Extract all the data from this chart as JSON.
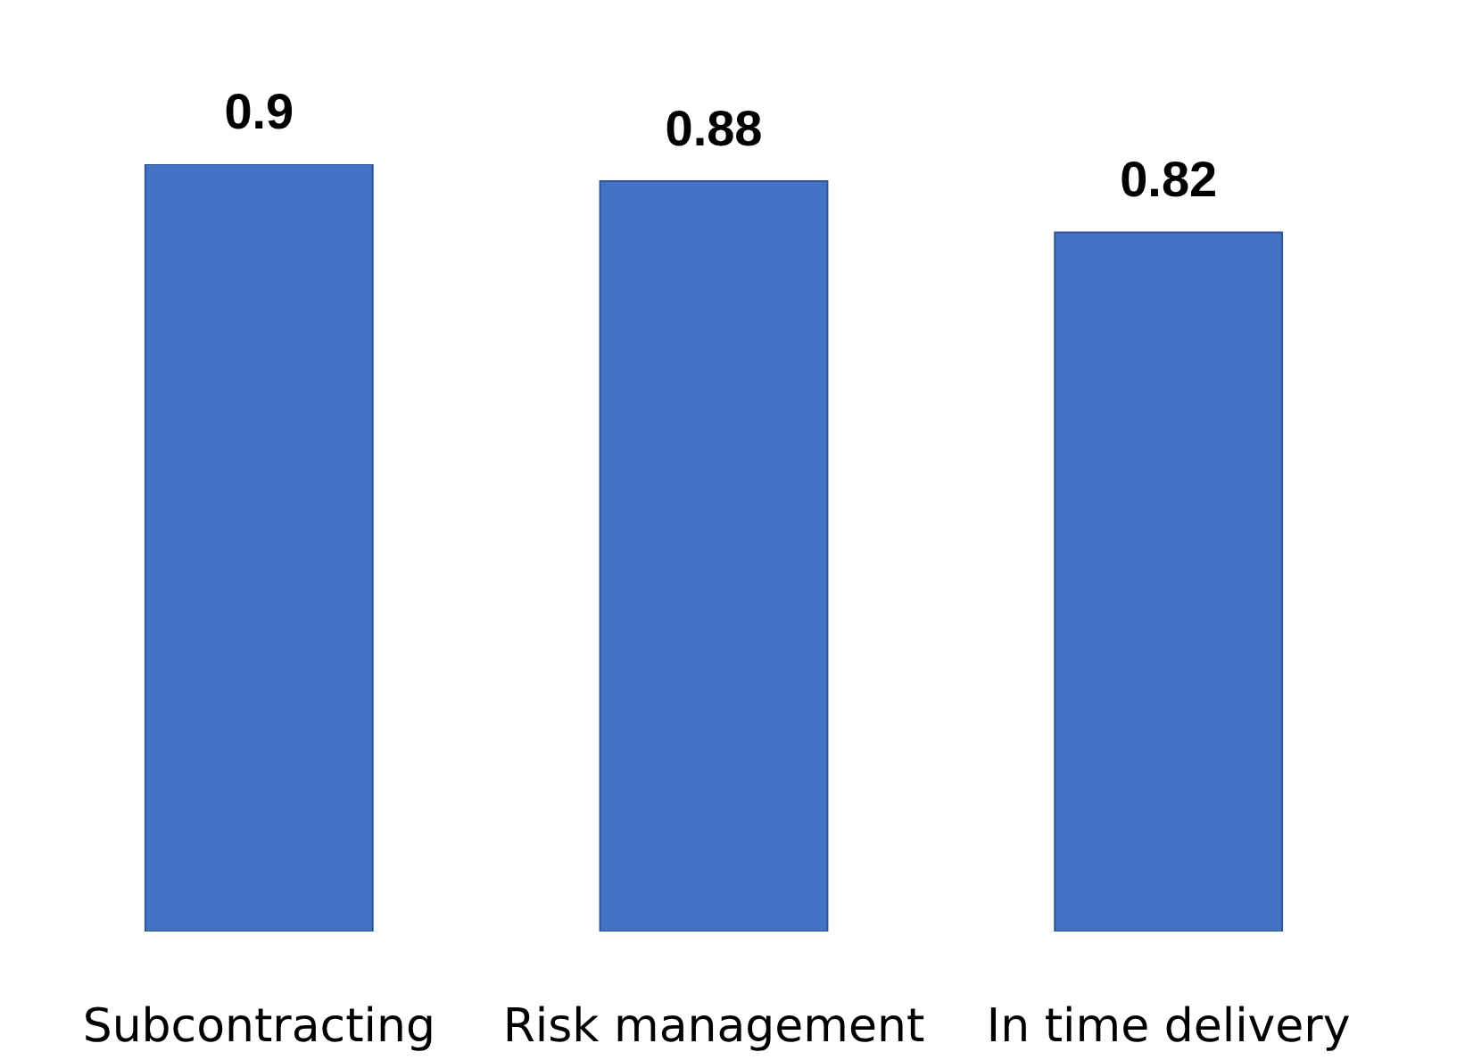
{
  "chart_data": {
    "type": "bar",
    "categories": [
      "Subcontracting",
      "Risk management",
      "In time delivery"
    ],
    "values": [
      0.9,
      0.88,
      0.82
    ],
    "color": "#4472c4",
    "data_labels": true
  }
}
